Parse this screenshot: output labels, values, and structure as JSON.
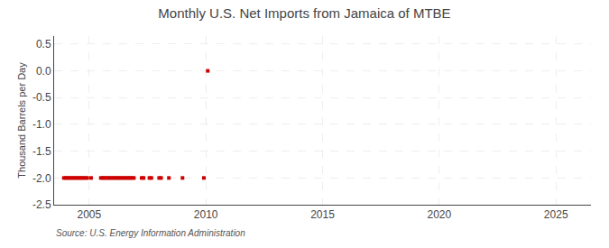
{
  "chart_data": {
    "type": "scatter",
    "title": "Monthly U.S. Net Imports from Jamaica of MTBE",
    "ylabel": "Thousand Barrels per Day",
    "annotations": [
      "Source: U.S. Energy Information Administration"
    ],
    "x": [
      2003.917,
      2004.0,
      2004.083,
      2004.167,
      2004.25,
      2004.333,
      2004.417,
      2004.5,
      2004.583,
      2004.667,
      2004.75,
      2004.833,
      2004.917,
      2005.083,
      2005.5,
      2005.583,
      2005.667,
      2005.75,
      2005.833,
      2005.917,
      2006.0,
      2006.083,
      2006.167,
      2006.25,
      2006.333,
      2006.417,
      2006.5,
      2006.583,
      2006.667,
      2006.75,
      2006.833,
      2006.917,
      2007.25,
      2007.333,
      2007.583,
      2007.667,
      2008.0,
      2008.083,
      2008.417,
      2009.0,
      2009.917,
      2010.083
    ],
    "values": [
      -2.0,
      -2.0,
      -2.0,
      -2.0,
      -2.0,
      -2.0,
      -2.0,
      -2.0,
      -2.0,
      -2.0,
      -2.0,
      -2.0,
      -2.0,
      -2.0,
      -2.0,
      -2.0,
      -2.0,
      -2.0,
      -2.0,
      -2.0,
      -2.0,
      -2.0,
      -2.0,
      -2.0,
      -2.0,
      -2.0,
      -2.0,
      -2.0,
      -2.0,
      -2.0,
      -2.0,
      -2.0,
      -2.0,
      -2.0,
      -2.0,
      -2.0,
      -2.0,
      -2.0,
      -2.0,
      -2.0,
      -2.0,
      0.0
    ],
    "color": "#cc0000",
    "marker": "square",
    "xlim": [
      2003.5,
      2026.5
    ],
    "xticks": [
      2005,
      2010,
      2015,
      2020,
      2025
    ],
    "ylim": [
      -2.5,
      0.65
    ],
    "yticks": [
      0.5,
      {
        "value": 0.0,
        "label": "0.0"
      },
      -0.5,
      {
        "value": -1.0,
        "label": "-1.0"
      },
      -1.5,
      {
        "value": -2.0,
        "label": "-2.0"
      },
      -2.5
    ],
    "grid": true
  }
}
